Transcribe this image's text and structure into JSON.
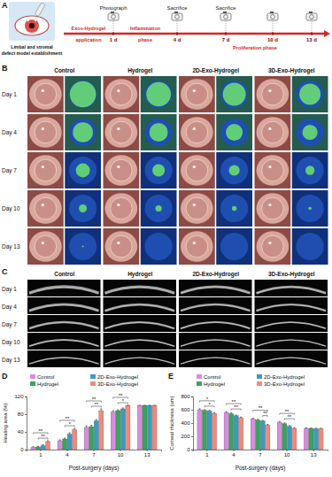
{
  "figure": {
    "panel_a": {
      "label": "A",
      "caption": [
        "Limbal and stromal",
        "defect model establishment"
      ],
      "application": [
        "Exos-Hydrogel",
        "application"
      ],
      "days": [
        "1 d",
        "4 d",
        "7 d",
        "10 d",
        "13 d"
      ],
      "events": [
        "Photograph",
        "Sacrifice",
        "Sacrifice"
      ],
      "phases": [
        [
          "Inflammation",
          "phase"
        ],
        [
          "Proliferation phase"
        ]
      ]
    },
    "panel_b": {
      "label": "B",
      "groups": [
        "Control",
        "Hydrogel",
        "2D-Exo-Hydrogel",
        "3D-Exo-Hydrogel"
      ],
      "rows": [
        "Day 1",
        "Day 4",
        "Day 7",
        "Day 10",
        "Day 13"
      ]
    },
    "panel_c": {
      "label": "C",
      "groups": [
        "Control",
        "Hydrogel",
        "2D-Exo-Hydrogel",
        "3D-Exo-Hydrogel"
      ],
      "rows": [
        "Day 1",
        "Day 4",
        "Day 7",
        "Day 10",
        "Day 13"
      ]
    }
  },
  "chart_data": [
    {
      "type": "bar",
      "panel": "D",
      "x_label": "Post-surgery (days)",
      "y_label": "Healing area (%)",
      "categories": [
        "1",
        "4",
        "7",
        "10",
        "13"
      ],
      "series": [
        {
          "name": "Control",
          "color": "#d98be0",
          "values": [
            5,
            20,
            50,
            85,
            100
          ],
          "errors": [
            1.5,
            2,
            3,
            3,
            0
          ]
        },
        {
          "name": "Hydrogel",
          "color": "#3aa35c",
          "values": [
            6,
            24,
            52,
            88,
            100
          ],
          "errors": [
            1.5,
            2,
            3,
            2,
            0
          ]
        },
        {
          "name": "2D-Exo-Hydrogel",
          "color": "#3a9bbf",
          "values": [
            9,
            35,
            65,
            92,
            100
          ],
          "errors": [
            2,
            3,
            3,
            2,
            0
          ]
        },
        {
          "name": "3D-Exo-Hydrogel",
          "color": "#f08a7e",
          "values": [
            18,
            45,
            88,
            100,
            100
          ],
          "errors": [
            2,
            3,
            4,
            0,
            0
          ]
        }
      ],
      "ylim": [
        0,
        120
      ],
      "yticks": [
        0,
        40,
        80,
        120
      ],
      "legend": "top",
      "significance": [
        {
          "category": "1",
          "pair": [
            "Hydrogel",
            "3D-Exo-Hydrogel"
          ],
          "label": "**"
        },
        {
          "category": "1",
          "pair": [
            "Control",
            "3D-Exo-Hydrogel"
          ],
          "label": "**"
        },
        {
          "category": "4",
          "pair": [
            "Hydrogel",
            "3D-Exo-Hydrogel"
          ],
          "label": "*"
        },
        {
          "category": "4",
          "pair": [
            "Control",
            "3D-Exo-Hydrogel"
          ],
          "label": "**"
        },
        {
          "category": "7",
          "pair": [
            "Hydrogel",
            "3D-Exo-Hydrogel"
          ],
          "label": "**"
        },
        {
          "category": "7",
          "pair": [
            "Control",
            "3D-Exo-Hydrogel"
          ],
          "label": "**"
        },
        {
          "category": "10",
          "pair": [
            "Hydrogel",
            "3D-Exo-Hydrogel"
          ],
          "label": "*"
        },
        {
          "category": "10",
          "pair": [
            "Control",
            "3D-Exo-Hydrogel"
          ],
          "label": "**"
        }
      ]
    },
    {
      "type": "bar",
      "panel": "E",
      "x_label": "Post-surgery (days)",
      "y_label": "Corneal thickness (um)",
      "categories": [
        "1",
        "4",
        "7",
        "10",
        "13"
      ],
      "series": [
        {
          "name": "Control",
          "color": "#d98be0",
          "values": [
            600,
            560,
            460,
            410,
            320
          ],
          "errors": [
            15,
            12,
            12,
            15,
            8
          ]
        },
        {
          "name": "Hydrogel",
          "color": "#3aa35c",
          "values": [
            590,
            540,
            445,
            390,
            318
          ],
          "errors": [
            12,
            12,
            10,
            12,
            8
          ]
        },
        {
          "name": "2D-Exo-Hydrogel",
          "color": "#3a9bbf",
          "values": [
            580,
            510,
            430,
            350,
            315
          ],
          "errors": [
            12,
            10,
            10,
            12,
            8
          ]
        },
        {
          "name": "3D-Exo-Hydrogel",
          "color": "#f08a7e",
          "values": [
            545,
            480,
            370,
            320,
            315
          ],
          "errors": [
            12,
            10,
            10,
            10,
            8
          ]
        }
      ],
      "ylim": [
        0,
        800
      ],
      "yticks": [
        0,
        200,
        400,
        600,
        800
      ],
      "legend": "top",
      "significance": [
        {
          "category": "1",
          "pair": [
            "Hydrogel",
            "3D-Exo-Hydrogel"
          ],
          "label": "*"
        },
        {
          "category": "1",
          "pair": [
            "Control",
            "3D-Exo-Hydrogel"
          ],
          "label": "*"
        },
        {
          "category": "4",
          "pair": [
            "Hydrogel",
            "3D-Exo-Hydrogel"
          ],
          "label": "**"
        },
        {
          "category": "4",
          "pair": [
            "Control",
            "3D-Exo-Hydrogel"
          ],
          "label": "**"
        },
        {
          "category": "7",
          "pair": [
            "2D-Exo-Hydrogel",
            "3D-Exo-Hydrogel"
          ],
          "label": "**"
        },
        {
          "category": "7",
          "pair": [
            "Control",
            "3D-Exo-Hydrogel"
          ],
          "label": "**"
        },
        {
          "category": "10",
          "pair": [
            "Hydrogel",
            "3D-Exo-Hydrogel"
          ],
          "label": "**"
        },
        {
          "category": "10",
          "pair": [
            "Control",
            "3D-Exo-Hydrogel"
          ],
          "label": "**"
        }
      ]
    }
  ]
}
